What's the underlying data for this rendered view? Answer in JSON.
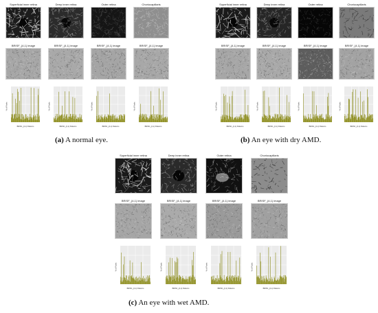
{
  "panels": [
    {
      "id": "a",
      "row1_titles": [
        "Superficial inner retina",
        "Deep inner retina",
        "Outer retina",
        "Choriocapillaris"
      ],
      "row2_titles": [
        "BRISF_{4,1} image",
        "BRISF_{4,1} image",
        "BRISF_{4,1} image",
        "BRISF_{4,1} image"
      ],
      "caption_letter": "(a)",
      "caption_text": " A normal eye."
    },
    {
      "id": "b",
      "row1_titles": [
        "Superficial inner retina",
        "Deep inner retina",
        "Outer retina",
        "Choriocapillaris"
      ],
      "row2_titles": [
        "BRISF_{4,1} image",
        "BRISF_{4,1} image",
        "BRISF_{4,1} image",
        "BRISF_{4,1} image"
      ],
      "caption_letter": "(b)",
      "caption_text": " An eye with dry AMD."
    },
    {
      "id": "c",
      "row1_titles": [
        "Superficial inner retina",
        "Deep inner retina",
        "Outer retina",
        "Choriocapillaris"
      ],
      "row2_titles": [
        "BRISF_{4,1} image",
        "BRISF_{4,1} image",
        "BRISF_{4,1} image",
        "BRISF_{4,1} image"
      ],
      "caption_letter": "(c)",
      "caption_text": " An eye with wet AMD."
    }
  ],
  "histogram": {
    "ylabel": "% of Pixels",
    "xlabel": "BRISF_{4,1} Patterns",
    "bar_color": "#8c8c1a"
  }
}
